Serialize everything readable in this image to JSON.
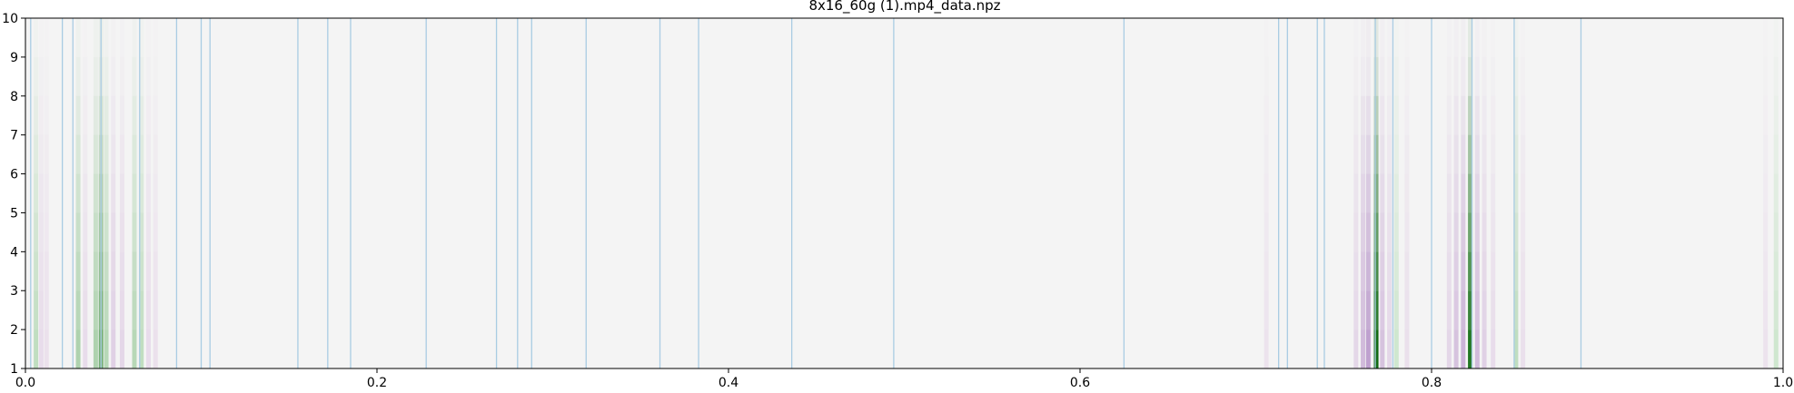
{
  "chart_data": {
    "type": "heatmap",
    "title": "8x16_60g (1).mp4_data.npz",
    "xlim": [
      0.0,
      1.0
    ],
    "ylim": [
      1,
      10
    ],
    "xticks": [
      "0.0",
      "0.2",
      "0.4",
      "0.6",
      "0.8",
      "1.0"
    ],
    "xtick_values": [
      0.0,
      0.2,
      0.4,
      0.6,
      0.8,
      1.0
    ],
    "yticks": [
      "1",
      "2",
      "3",
      "4",
      "5",
      "6",
      "7",
      "8",
      "9",
      "10"
    ],
    "ytick_values": [
      1,
      2,
      3,
      4,
      5,
      6,
      7,
      8,
      9,
      10
    ],
    "grid": false,
    "colormap": "PRGn (purple-white-green, diverging)",
    "background_color": "#f4f4f4",
    "vertical_lines": {
      "color": "#a9cce3",
      "x": [
        0.003,
        0.021,
        0.027,
        0.043,
        0.065,
        0.086,
        0.1,
        0.105,
        0.155,
        0.172,
        0.185,
        0.228,
        0.268,
        0.28,
        0.288,
        0.319,
        0.361,
        0.383,
        0.436,
        0.494,
        0.625,
        0.713,
        0.718,
        0.735,
        0.739,
        0.768,
        0.778,
        0.8,
        0.823,
        0.847,
        0.885
      ]
    },
    "intensity_columns": [
      {
        "x": 0.006,
        "value": 0.25,
        "sign": "green"
      },
      {
        "x": 0.009,
        "value": -0.15,
        "sign": "purple"
      },
      {
        "x": 0.012,
        "value": -0.1,
        "sign": "purple"
      },
      {
        "x": 0.03,
        "value": 0.35,
        "sign": "green"
      },
      {
        "x": 0.034,
        "value": -0.15,
        "sign": "purple"
      },
      {
        "x": 0.04,
        "value": 0.35,
        "sign": "green"
      },
      {
        "x": 0.043,
        "value": 0.6,
        "sign": "green"
      },
      {
        "x": 0.046,
        "value": 0.3,
        "sign": "green"
      },
      {
        "x": 0.05,
        "value": -0.25,
        "sign": "purple"
      },
      {
        "x": 0.055,
        "value": -0.2,
        "sign": "purple"
      },
      {
        "x": 0.062,
        "value": 0.3,
        "sign": "green"
      },
      {
        "x": 0.066,
        "value": 0.25,
        "sign": "green"
      },
      {
        "x": 0.07,
        "value": -0.15,
        "sign": "purple"
      },
      {
        "x": 0.074,
        "value": -0.1,
        "sign": "purple"
      },
      {
        "x": 0.706,
        "value": -0.08,
        "sign": "purple"
      },
      {
        "x": 0.757,
        "value": -0.2,
        "sign": "purple"
      },
      {
        "x": 0.761,
        "value": -0.4,
        "sign": "purple"
      },
      {
        "x": 0.764,
        "value": -0.55,
        "sign": "purple"
      },
      {
        "x": 0.7685,
        "value": 0.95,
        "sign": "green"
      },
      {
        "x": 0.772,
        "value": -0.35,
        "sign": "purple"
      },
      {
        "x": 0.776,
        "value": -0.2,
        "sign": "purple"
      },
      {
        "x": 0.78,
        "value": 0.15,
        "sign": "green"
      },
      {
        "x": 0.786,
        "value": -0.12,
        "sign": "purple"
      },
      {
        "x": 0.81,
        "value": -0.2,
        "sign": "purple"
      },
      {
        "x": 0.814,
        "value": -0.35,
        "sign": "purple"
      },
      {
        "x": 0.818,
        "value": -0.45,
        "sign": "purple"
      },
      {
        "x": 0.822,
        "value": 0.9,
        "sign": "green"
      },
      {
        "x": 0.826,
        "value": -0.4,
        "sign": "purple"
      },
      {
        "x": 0.83,
        "value": -0.25,
        "sign": "purple"
      },
      {
        "x": 0.835,
        "value": -0.15,
        "sign": "purple"
      },
      {
        "x": 0.848,
        "value": 0.25,
        "sign": "green"
      },
      {
        "x": 0.852,
        "value": -0.12,
        "sign": "purple"
      },
      {
        "x": 0.99,
        "value": -0.08,
        "sign": "purple"
      },
      {
        "x": 0.996,
        "value": 0.15,
        "sign": "green"
      }
    ]
  }
}
